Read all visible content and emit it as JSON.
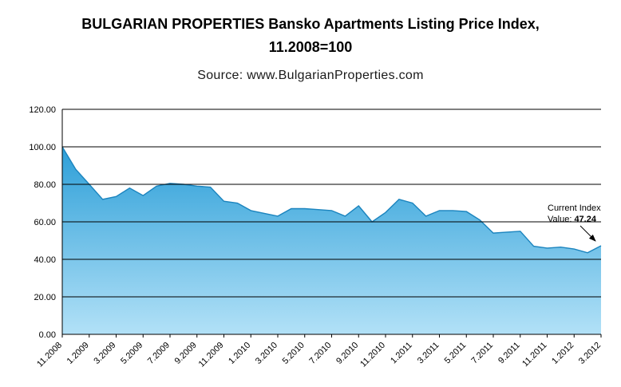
{
  "title": "BULGARIAN PROPERTIES Bansko Apartments Listing Price Index, 11.2008=100",
  "source": "Source: www.BulgarianProperties.com",
  "annotation": {
    "line1": "Current Index",
    "line2_prefix": "Value: ",
    "value": "47.24"
  },
  "chart_data": {
    "type": "area",
    "title": "BULGARIAN PROPERTIES Bansko Apartments Listing Price Index, 11.2008=100",
    "x": [
      "11.2008",
      "12.2008",
      "1.2009",
      "2.2009",
      "3.2009",
      "4.2009",
      "5.2009",
      "6.2009",
      "7.2009",
      "8.2009",
      "9.2009",
      "10.2009",
      "11.2009",
      "12.2009",
      "1.2010",
      "2.2010",
      "3.2010",
      "4.2010",
      "5.2010",
      "6.2010",
      "7.2010",
      "8.2010",
      "9.2010",
      "10.2010",
      "11.2010",
      "12.2010",
      "1.2011",
      "2.2011",
      "3.2011",
      "4.2011",
      "5.2011",
      "6.2011",
      "7.2011",
      "8.2011",
      "9.2011",
      "10.2011",
      "11.2011",
      "12.2011",
      "1.2012",
      "2.2012",
      "3.2012"
    ],
    "values": [
      100,
      88,
      80,
      72,
      73.5,
      78,
      74,
      79,
      80.5,
      80,
      79,
      78.5,
      71,
      70,
      66,
      64.5,
      63,
      67,
      67,
      66.5,
      66,
      63,
      68.5,
      60,
      65,
      72,
      70,
      63,
      66,
      66,
      65.5,
      61,
      54,
      54.5,
      55,
      47,
      46,
      46.5,
      45.5,
      43.5,
      47.24
    ],
    "xtick_labels": [
      "11.2008",
      "1.2009",
      "3.2009",
      "5.2009",
      "7.2009",
      "9.2009",
      "11.2009",
      "1.2010",
      "3.2010",
      "5.2010",
      "7.2010",
      "9.2010",
      "11.2010",
      "1.2011",
      "3.2011",
      "5.2011",
      "7.2011",
      "9.2011",
      "11.2011",
      "1.2012",
      "3.2012"
    ],
    "ytick_labels": [
      "0.00",
      "20.00",
      "40.00",
      "60.00",
      "80.00",
      "100.00",
      "120.00"
    ],
    "ylim": [
      0,
      120
    ],
    "ytick_step": 20,
    "grid": true,
    "legend": "none",
    "current_value": 47.24,
    "colors": {
      "area_top": "#2D9FD8",
      "area_bottom": "#B2E1F7",
      "line": "#1B84BE",
      "grid": "#000000",
      "text": "#000000"
    }
  }
}
